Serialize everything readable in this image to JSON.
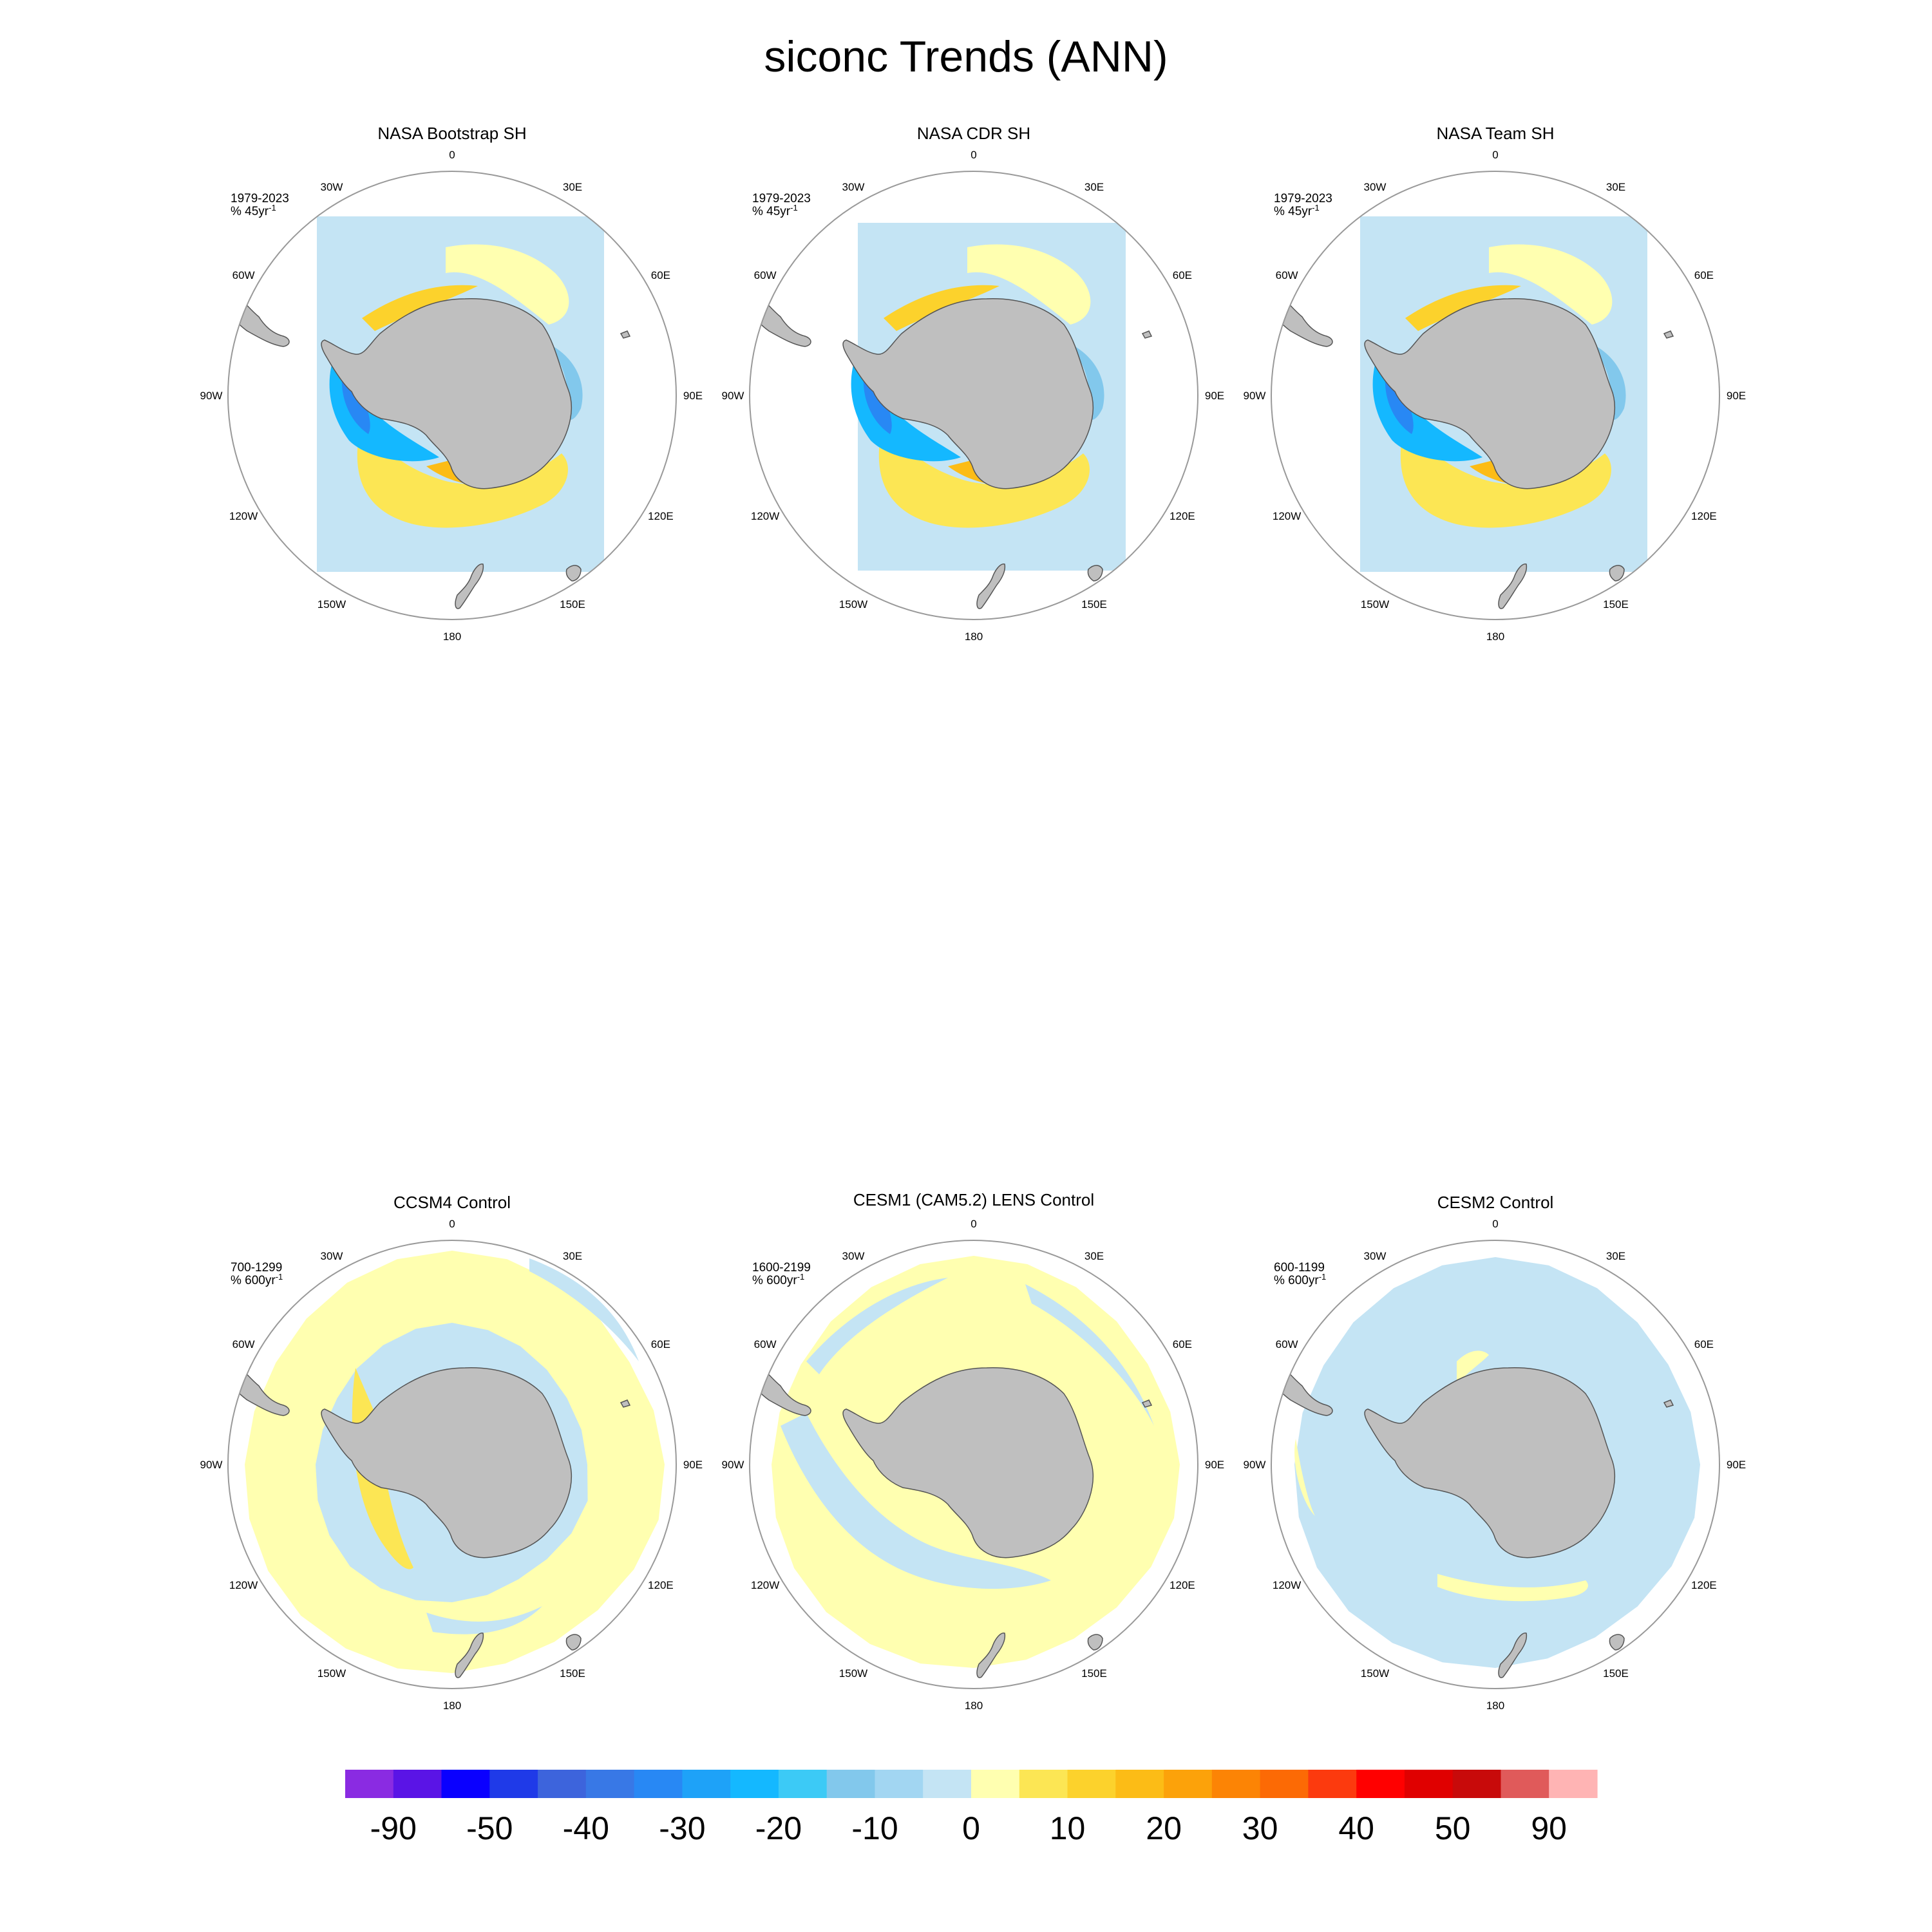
{
  "title": "siconc Trends (ANN)",
  "colors": {
    "land": "#bfbfbf",
    "circle": "#999999",
    "coast": "#555555",
    "palette_neg": [
      "#8a2be2",
      "#5a14e6",
      "#0a00ff",
      "#1f3ae8",
      "#3d64dc",
      "#3878e6",
      "#2888f4",
      "#1ea2f8",
      "#14b8ff",
      "#3ccaf6",
      "#82c8ec",
      "#a2d6f2",
      "#c4e4f4"
    ],
    "palette_pos": [
      "#ffffb0",
      "#fce654",
      "#fcd22c",
      "#fcbc16",
      "#fca20a",
      "#fc8405",
      "#fc6a05",
      "#fc3a0e",
      "#ff0000",
      "#e00000",
      "#c80a0a",
      "#e05a5a",
      "#ffb4b4"
    ]
  },
  "chart_data": [
    {
      "type": "heatmap",
      "title": "NASA Bootstrap SH",
      "period": "1979-2023",
      "units": "% 45yr",
      "units_exp": "-1",
      "lon_labels": [
        "0",
        "30E",
        "60E",
        "90E",
        "120E",
        "150E",
        "180",
        "150W",
        "120W",
        "90W",
        "60W",
        "30W"
      ],
      "regions": [
        {
          "name": "outer-pack",
          "value": -5
        },
        {
          "name": "ross-weddell-positive",
          "value": 5
        },
        {
          "name": "east-antarctic-positive",
          "value": 12
        },
        {
          "name": "amundsen-bellingshausen-negative",
          "value": -25
        }
      ]
    },
    {
      "type": "heatmap",
      "title": "NASA CDR SH",
      "period": "1979-2023",
      "units": "% 45yr",
      "units_exp": "-1",
      "lon_labels": [
        "0",
        "30E",
        "60E",
        "90E",
        "120E",
        "150E",
        "180",
        "150W",
        "120W",
        "90W",
        "60W",
        "30W"
      ],
      "regions": [
        {
          "name": "outer-pack",
          "value": -5
        },
        {
          "name": "ross-weddell-positive",
          "value": 5
        },
        {
          "name": "east-antarctic-positive",
          "value": 12
        },
        {
          "name": "amundsen-bellingshausen-negative",
          "value": -25
        }
      ]
    },
    {
      "type": "heatmap",
      "title": "NASA Team SH",
      "period": "1979-2023",
      "units": "% 45yr",
      "units_exp": "-1",
      "lon_labels": [
        "0",
        "30E",
        "60E",
        "90E",
        "120E",
        "150E",
        "180",
        "150W",
        "120W",
        "90W",
        "60W",
        "30W"
      ],
      "regions": [
        {
          "name": "outer-pack",
          "value": -5
        },
        {
          "name": "ross-weddell-positive",
          "value": 5
        },
        {
          "name": "east-antarctic-positive",
          "value": 12
        },
        {
          "name": "amundsen-bellingshausen-negative",
          "value": -25
        }
      ]
    },
    {
      "type": "heatmap",
      "title": "CCSM4 Control",
      "period": "700-1299",
      "units": "% 600yr",
      "units_exp": "-1",
      "lon_labels": [
        "0",
        "30E",
        "60E",
        "90E",
        "120E",
        "150E",
        "180",
        "150W",
        "120W",
        "90W",
        "60W",
        "30W"
      ],
      "regions": [
        {
          "name": "outer-pack",
          "value": 5
        },
        {
          "name": "inner-ring",
          "value": -5
        },
        {
          "name": "weddell-band",
          "value": 12
        }
      ]
    },
    {
      "type": "heatmap",
      "title": "CESM1 (CAM5.2) LENS Control",
      "period": "1600-2199",
      "units": "% 600yr",
      "units_exp": "-1",
      "lon_labels": [
        "0",
        "30E",
        "60E",
        "90E",
        "120E",
        "150E",
        "180",
        "150W",
        "120W",
        "90W",
        "60W",
        "30W"
      ],
      "regions": [
        {
          "name": "outer-pack",
          "value": 5
        },
        {
          "name": "mixed-sectors",
          "value": -5
        }
      ]
    },
    {
      "type": "heatmap",
      "title": "CESM2 Control",
      "period": "600-1199",
      "units": "% 600yr",
      "units_exp": "-1",
      "lon_labels": [
        "0",
        "30E",
        "60E",
        "90E",
        "120E",
        "150E",
        "180",
        "150W",
        "120W",
        "90W",
        "60W",
        "30W"
      ],
      "regions": [
        {
          "name": "outer-pack",
          "value": -5
        },
        {
          "name": "ross-band",
          "value": 5
        }
      ]
    }
  ],
  "colorbar": {
    "labels": [
      "-90",
      "-50",
      "-40",
      "-30",
      "-20",
      "-10",
      "0",
      "10",
      "20",
      "30",
      "40",
      "50",
      "90"
    ]
  }
}
